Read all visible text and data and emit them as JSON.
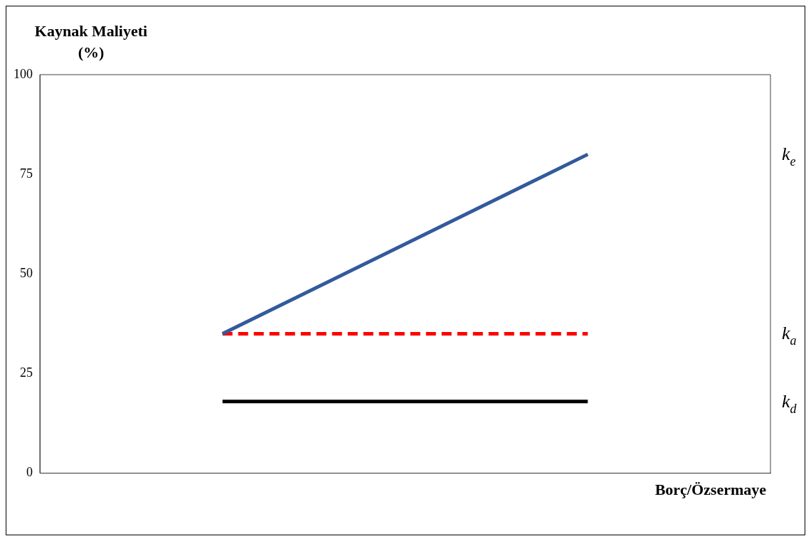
{
  "chart_data": {
    "type": "line",
    "xlabel": "Borç/Özsermaye",
    "ylabel": "Kaynak Maliyeti (%)",
    "categories": [
      null,
      null
    ],
    "ylim": [
      0,
      100
    ],
    "yticks": [
      0,
      25,
      50,
      75,
      100
    ],
    "grid": false,
    "legend": false,
    "marker": "none",
    "series": [
      {
        "name": "k$_{e}$",
        "color": "#335a9c",
        "values": [
          35,
          80
        ],
        "line_style": "solid"
      },
      {
        "name": "k$_{a}$",
        "color": "#ff0000",
        "values": [
          35,
          35
        ],
        "line_style": "dashed"
      },
      {
        "name": "k$_{d}$",
        "color": "#000000",
        "values": [
          18,
          18
        ],
        "line_style": "solid"
      }
    ]
  }
}
